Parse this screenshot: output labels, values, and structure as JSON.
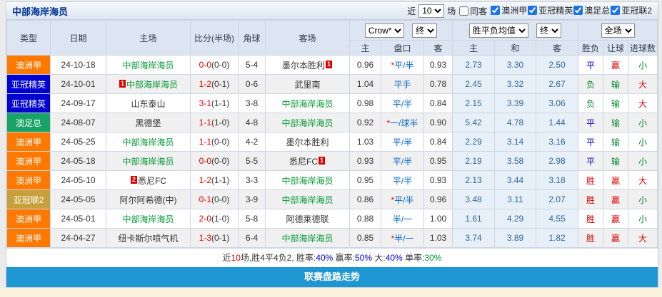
{
  "header": {
    "team_name": "中部海岸海员",
    "recent_label": "近",
    "recent_count": "10",
    "games_label": "场",
    "same_opponent": {
      "label": "同客",
      "checked": false
    },
    "league_filters": [
      {
        "label": "澳洲甲",
        "checked": true
      },
      {
        "label": "亚冠精英",
        "checked": true
      },
      {
        "label": "澳足总",
        "checked": true
      },
      {
        "label": "亚冠联2",
        "checked": true
      }
    ]
  },
  "table": {
    "columns": [
      "类型",
      "日期",
      "主场",
      "比分(半场)",
      "角球",
      "客场",
      "主",
      "盘口",
      "客",
      "主",
      "和",
      "客",
      "胜负",
      "让球",
      "进球数"
    ],
    "selects": {
      "bookmaker": "Crow*",
      "asia_time": "终",
      "euro_type": "胜平负均值",
      "euro_time": "终",
      "scope": "全场"
    },
    "type_colors": {
      "澳洲甲": "#FF7800",
      "亚冠精英": "#0000D0",
      "澳足总": "#18A266",
      "亚冠联2": "#C7A03C"
    },
    "outcome_colors": {
      "胜": "#DD0000",
      "平": "#0000CC",
      "负": "#008833",
      "赢": "#DD0000",
      "输": "#008833",
      "大": "#DD0000",
      "小": "#008833"
    },
    "rows": [
      {
        "type": "澳洲甲",
        "date": "24-10-18",
        "home": {
          "name": "中部海岸海员",
          "highlight": true
        },
        "away": {
          "name": "墨尔本胜利",
          "badge_after": "1"
        },
        "score": "0-0(0-0)",
        "corners": "5-4",
        "asia": [
          "0.96",
          "*平/半",
          "0.93"
        ],
        "euro": [
          "2.73",
          "3.30",
          "2.50"
        ],
        "outcome": [
          "平",
          "赢",
          "小"
        ]
      },
      {
        "type": "亚冠精英",
        "date": "24-10-01",
        "home": {
          "name": "中部海岸海员",
          "highlight": true,
          "badge_before": "1"
        },
        "away": {
          "name": "武里南"
        },
        "score": "1-2(0-1)",
        "corners": "0-6",
        "asia": [
          "1.04",
          "平手",
          "0.78"
        ],
        "euro": [
          "2.45",
          "3.32",
          "2.67"
        ],
        "outcome": [
          "负",
          "输",
          "大"
        ]
      },
      {
        "type": "亚冠精英",
        "date": "24-09-17",
        "home": {
          "name": "山东泰山"
        },
        "away": {
          "name": "中部海岸海员",
          "highlight": true
        },
        "score": "3-1(1-1)",
        "corners": "3-8",
        "asia": [
          "0.98",
          "平/半",
          "0.84"
        ],
        "euro": [
          "2.15",
          "3.39",
          "3.06"
        ],
        "outcome": [
          "负",
          "输",
          "大"
        ]
      },
      {
        "type": "澳足总",
        "date": "24-08-07",
        "home": {
          "name": "黑德堡"
        },
        "away": {
          "name": "中部海岸海员",
          "highlight": true
        },
        "score": "1-1(1-0)",
        "corners": "4-8",
        "asia": [
          "0.92",
          "*一/球半",
          "0.90"
        ],
        "euro": [
          "5.42",
          "4.78",
          "1.44"
        ],
        "outcome": [
          "平",
          "输",
          "小"
        ]
      },
      {
        "type": "澳洲甲",
        "date": "24-05-25",
        "home": {
          "name": "中部海岸海员",
          "highlight": true
        },
        "away": {
          "name": "墨尔本胜利"
        },
        "score": "1-1(0-0)",
        "corners": "4-2",
        "asia": [
          "1.03",
          "平/半",
          "0.84"
        ],
        "euro": [
          "2.29",
          "3.14",
          "3.16"
        ],
        "outcome": [
          "平",
          "输",
          "小"
        ]
      },
      {
        "type": "澳洲甲",
        "date": "24-05-18",
        "home": {
          "name": "中部海岸海员",
          "highlight": true
        },
        "away": {
          "name": "悉尼FC",
          "badge_after": "1"
        },
        "score": "0-0(0-0)",
        "corners": "5-5",
        "asia": [
          "0.93",
          "平/半",
          "0.95"
        ],
        "euro": [
          "2.19",
          "3.58",
          "2.98"
        ],
        "outcome": [
          "平",
          "输",
          "小"
        ]
      },
      {
        "type": "澳洲甲",
        "date": "24-05-10",
        "home": {
          "name": "悉尼FC",
          "badge_before": "2"
        },
        "away": {
          "name": "中部海岸海员",
          "highlight": true
        },
        "score": "1-2(1-1)",
        "corners": "3-3",
        "asia": [
          "0.95",
          "平/半",
          "0.93"
        ],
        "euro": [
          "2.13",
          "3.44",
          "3.18"
        ],
        "outcome": [
          "胜",
          "赢",
          "大"
        ]
      },
      {
        "type": "亚冠联2",
        "date": "24-05-05",
        "home": {
          "name": "阿尔阿希德(中)"
        },
        "away": {
          "name": "中部海岸海员",
          "highlight": true
        },
        "score": "0-1(0-0)",
        "corners": "3-9",
        "asia": [
          "0.86",
          "*平/半",
          "0.96"
        ],
        "euro": [
          "3.48",
          "3.11",
          "2.07"
        ],
        "outcome": [
          "胜",
          "赢",
          "小"
        ]
      },
      {
        "type": "澳洲甲",
        "date": "24-05-01",
        "home": {
          "name": "中部海岸海员",
          "highlight": true
        },
        "away": {
          "name": "阿德莱德联"
        },
        "score": "2-0(1-0)",
        "corners": "5-8",
        "asia": [
          "0.88",
          "半/一",
          "1.00"
        ],
        "euro": [
          "1.61",
          "4.29",
          "4.55"
        ],
        "outcome": [
          "胜",
          "赢",
          "小"
        ]
      },
      {
        "type": "澳洲甲",
        "date": "24-04-27",
        "home": {
          "name": "纽卡斯尔喷气机"
        },
        "away": {
          "name": "中部海岸海员",
          "highlight": true
        },
        "score": "1-3(0-1)",
        "corners": "6-4",
        "asia": [
          "0.85",
          "*半/一",
          "1.03"
        ],
        "euro": [
          "3.74",
          "3.89",
          "1.82"
        ],
        "outcome": [
          "胜",
          "赢",
          "大"
        ]
      }
    ]
  },
  "summary": {
    "segments": [
      {
        "text": "近",
        "color": "#333333"
      },
      {
        "text": "10",
        "color": "#DD0000"
      },
      {
        "text": "场,胜4平4负2, 胜率:",
        "color": "#333333"
      },
      {
        "text": "40%",
        "color": "#0000CC"
      },
      {
        "text": " 赢率:",
        "color": "#333333"
      },
      {
        "text": "50%",
        "color": "#0000CC"
      },
      {
        "text": " 大:",
        "color": "#333333"
      },
      {
        "text": "40%",
        "color": "#0000CC"
      },
      {
        "text": " 单率:",
        "color": "#333333"
      },
      {
        "text": "30%",
        "color": "#009933"
      }
    ]
  },
  "footer": {
    "button_label": "联赛盘路走势"
  }
}
